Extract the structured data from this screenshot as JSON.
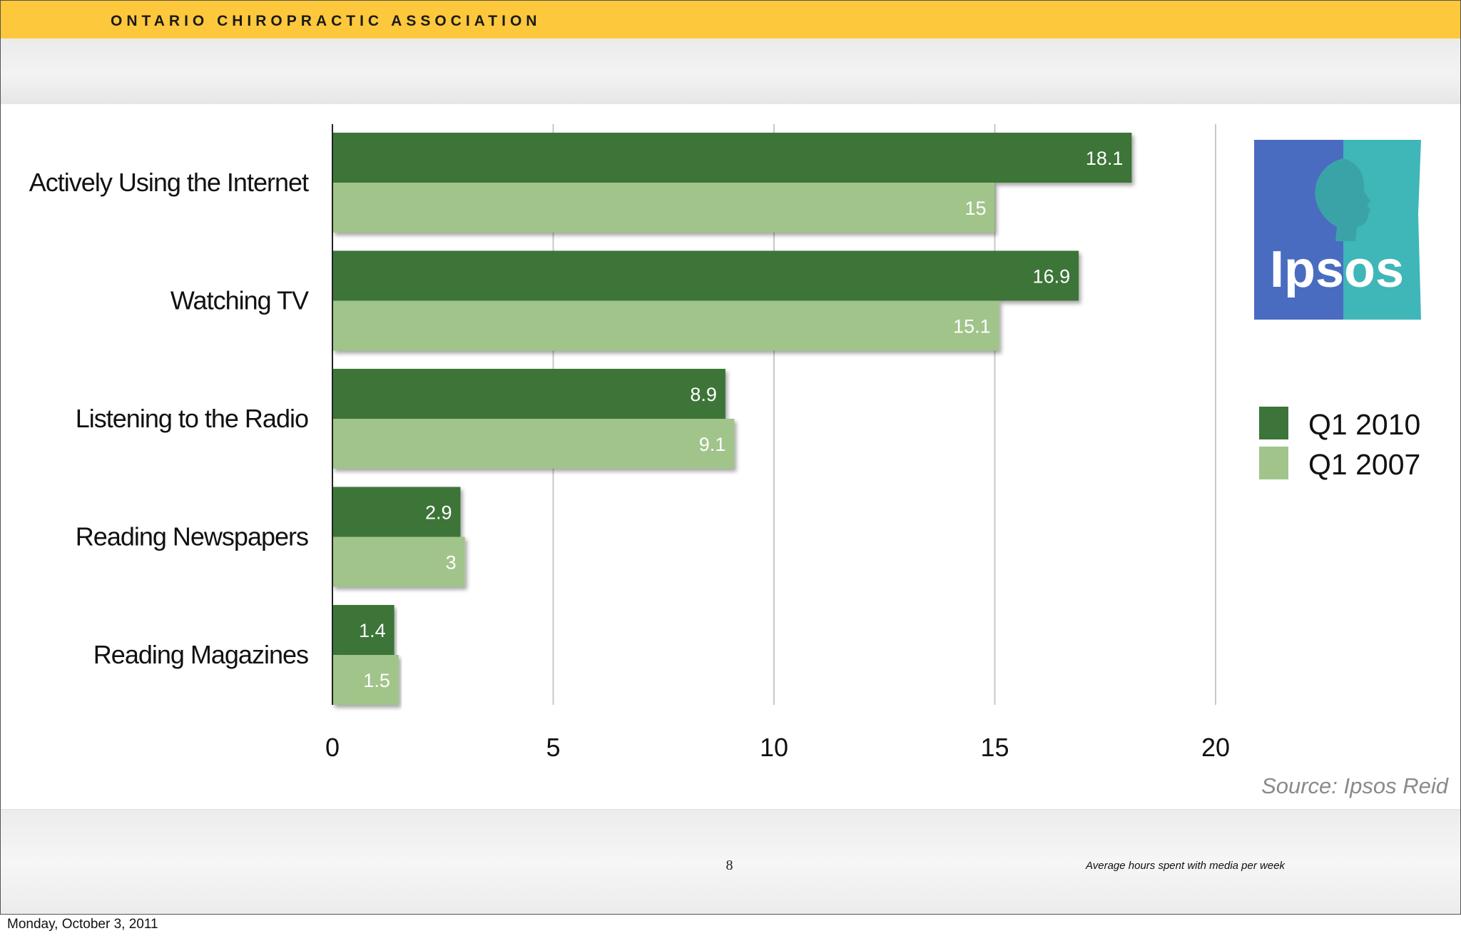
{
  "header": {
    "title": "ONTARIO CHIROPRACTIC ASSOCIATION"
  },
  "footer": {
    "page_number": "8",
    "note": "Average hours spent with media per week",
    "date": "Monday, October 3, 2011"
  },
  "logo": {
    "text": "Ipsos",
    "colors": {
      "left": "#4a6cc0",
      "right": "#3fb6b8"
    }
  },
  "colors": {
    "header": "#fdc83b",
    "series_2010": "#3c7439",
    "series_2007": "#a1c48a",
    "grid": "#c8c8c8"
  },
  "chart_data": {
    "type": "bar",
    "orientation": "horizontal",
    "categories": [
      "Actively Using the Internet",
      "Watching TV",
      "Listening to the Radio",
      "Reading Newspapers",
      "Reading Magazines"
    ],
    "series": [
      {
        "name": "Q1 2010",
        "values": [
          18.1,
          16.9,
          8.9,
          2.9,
          1.4
        ],
        "labels": [
          "18.1",
          "16.9",
          "8.9",
          "2.9",
          "1.4"
        ],
        "color": "#3c7439"
      },
      {
        "name": "Q1 2007",
        "values": [
          15,
          15.1,
          9.1,
          3,
          1.5
        ],
        "labels": [
          "15",
          "15.1",
          "9.1",
          "3",
          "1.5"
        ],
        "color": "#a1c48a"
      }
    ],
    "xlim": [
      0,
      20
    ],
    "xticks": [
      0,
      5,
      10,
      15,
      20
    ],
    "xtick_labels": [
      "0",
      "5",
      "10",
      "15",
      "20"
    ],
    "grid": true,
    "legend_position": "right",
    "data_labels": true,
    "source": "Source: Ipsos Reid"
  }
}
